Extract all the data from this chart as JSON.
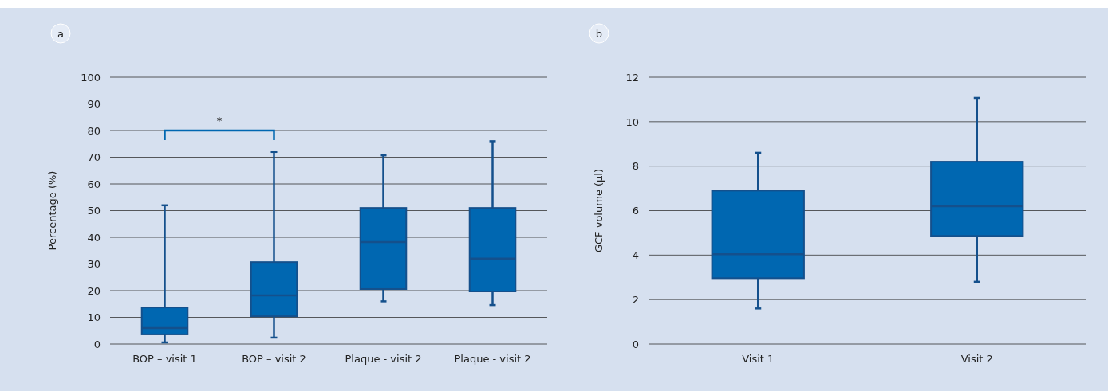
{
  "chart_data": [
    {
      "type": "box",
      "ylabel": "Percentage (%)",
      "categories": [
        "BOP – visit 1",
        "BOP – visit 2",
        "Plaque - visit 2",
        "Plaque - visit 2"
      ],
      "color": "#0067b1",
      "ylim": [
        0,
        100
      ],
      "yticks": [
        0,
        10,
        20,
        30,
        40,
        50,
        60,
        70,
        80,
        90,
        100
      ],
      "grid": "y",
      "annotations": [
        "a",
        "*"
      ],
      "boxes": [
        {
          "low": 0.6,
          "q1": 3.6,
          "median": 6,
          "q3": 13.7,
          "high": 52
        },
        {
          "low": 2.4,
          "q1": 10.4,
          "median": 18.2,
          "q3": 30.7,
          "high": 72
        },
        {
          "low": 16,
          "q1": 20.6,
          "median": 38.2,
          "q3": 51,
          "high": 70.7
        },
        {
          "low": 14.6,
          "q1": 19.7,
          "median": 32,
          "q3": 51,
          "high": 76
        }
      ]
    },
    {
      "type": "box",
      "ylabel": "GCF volume (µl)",
      "categories": [
        "Visit 1",
        "Visit 2"
      ],
      "color": "#0067b1",
      "ylim": [
        0,
        12
      ],
      "yticks": [
        0,
        2,
        4,
        6,
        8,
        10,
        12
      ],
      "grid": "y",
      "annotations": [
        "b"
      ],
      "boxes": [
        {
          "low": 1.6,
          "q1": 2.96,
          "median": 4.04,
          "q3": 6.9,
          "high": 8.6
        },
        {
          "low": 2.8,
          "q1": 4.86,
          "median": 6.2,
          "q3": 8.2,
          "high": 11.07
        }
      ]
    }
  ]
}
